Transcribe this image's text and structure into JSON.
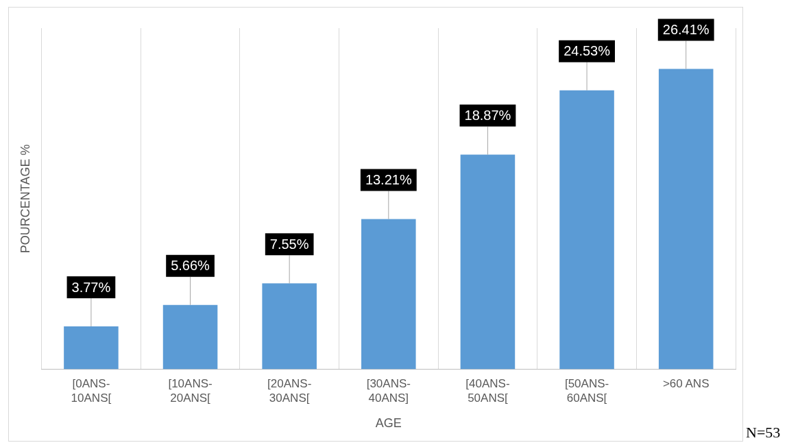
{
  "chart_data": {
    "type": "bar",
    "categories": [
      "[0ANS-10ANS[",
      "[10ANS-20ANS[",
      "[20ANS-30ANS[",
      "[30ANS-40ANS]",
      "[40ANS-50ANS[",
      "[50ANS-60ANS[",
      ">60 ANS"
    ],
    "values": [
      3.77,
      5.66,
      7.55,
      13.21,
      18.87,
      24.53,
      26.41
    ],
    "value_labels": [
      "3.77%",
      "5.66%",
      "7.55%",
      "13.21%",
      "18.87%",
      "24.53%",
      "26.41%"
    ],
    "color": "#5b9bd5",
    "xlabel": "AGE",
    "ylabel": "POURCENTAGE %",
    "grid": "x",
    "legend": false,
    "annotations": [
      "N=53"
    ]
  }
}
